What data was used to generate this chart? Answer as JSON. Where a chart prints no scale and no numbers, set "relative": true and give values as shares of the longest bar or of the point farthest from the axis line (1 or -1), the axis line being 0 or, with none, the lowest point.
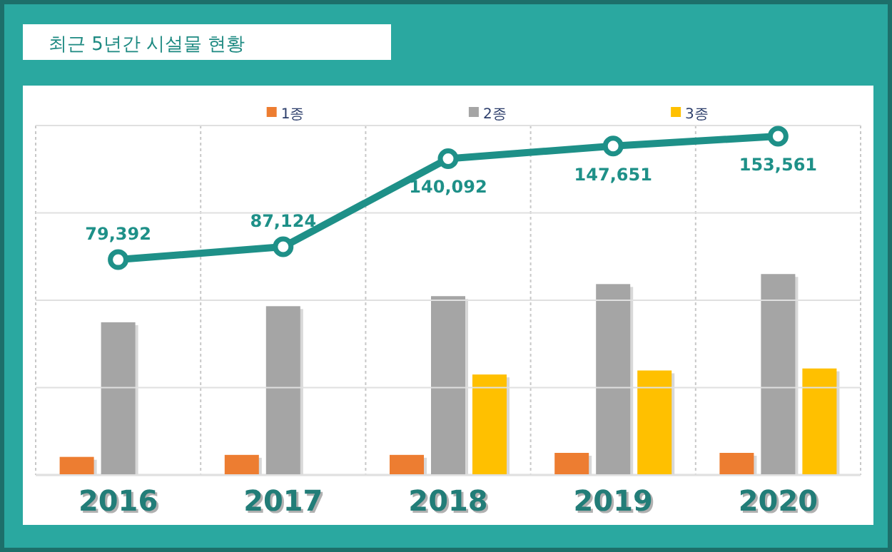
{
  "chart_data": [
    {
      "type": "bar",
      "title": "최근 5년간 시설물 현황",
      "categories": [
        "2016",
        "2017",
        "2018",
        "2019",
        "2020"
      ],
      "relative": true,
      "grid": "x",
      "legend": "top",
      "series": [
        {
          "name": "1종",
          "color": "#ed7d31",
          "values": [
            0.09,
            0.1,
            0.1,
            0.11,
            0.11
          ]
        },
        {
          "name": "2종",
          "color": "#a5a5a5",
          "values": [
            0.76,
            0.84,
            0.89,
            0.95,
            1
          ]
        },
        {
          "name": "3종",
          "color": "#ffc000",
          "values": [
            null,
            null,
            0.5,
            0.52,
            0.53
          ]
        }
      ]
    },
    {
      "type": "line",
      "categories": [
        "2016",
        "2017",
        "2018",
        "2019",
        "2020"
      ],
      "ylim": [
        -50000,
        160000
      ],
      "yticks": [
        {
          "value": -50000,
          "label": null
        },
        {
          "value": 2500,
          "label": null
        },
        {
          "value": 55000,
          "label": null
        },
        {
          "value": 107500,
          "label": null
        },
        {
          "value": 160000,
          "label": null
        }
      ],
      "grid": "y",
      "marker": "circle",
      "series": [
        {
          "color": "#1e9088",
          "values": [
            79392,
            87124,
            140092,
            147651,
            153561
          ],
          "value_labels": [
            "79,392",
            "87,124",
            "140,092",
            "147,651",
            "153,561"
          ]
        }
      ]
    }
  ]
}
